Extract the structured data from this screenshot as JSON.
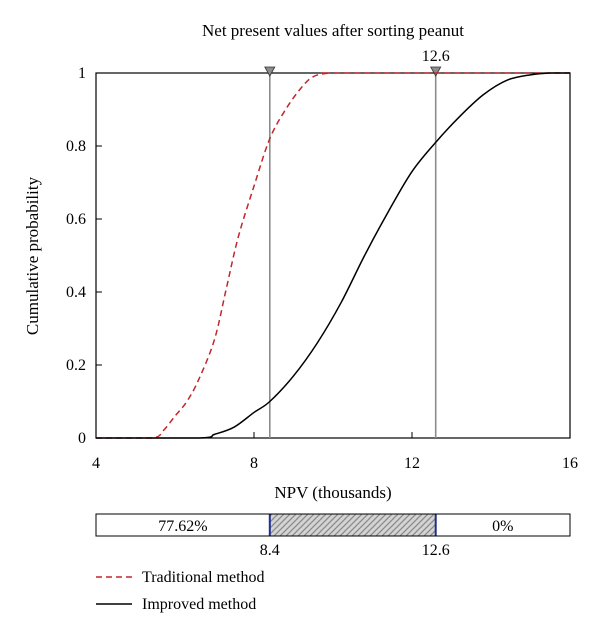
{
  "chart_data": {
    "type": "line",
    "title": "Net present values after sorting peanut",
    "xlabel": "NPV (thousands)",
    "ylabel": "Cumulative probability",
    "xlim": [
      4,
      16
    ],
    "ylim": [
      0,
      1
    ],
    "xticks": [
      4,
      8,
      12,
      16
    ],
    "xtick_labels": [
      "4",
      "8",
      "12",
      "16"
    ],
    "yticks": [
      0,
      0.2,
      0.4,
      0.6,
      0.8,
      1
    ],
    "ytick_labels": [
      "0",
      "0.2",
      "0.4",
      "0.6",
      "0.8",
      "1"
    ],
    "grid": false,
    "series": [
      {
        "name": "Traditional method",
        "color": "#c0272d",
        "dash": "dashed",
        "x": [
          5.4,
          5.7,
          6.0,
          6.3,
          6.6,
          7.0,
          7.3,
          7.6,
          8.0,
          8.4,
          8.8,
          9.2,
          9.5,
          9.9,
          10.2
        ],
        "y": [
          0.0,
          0.02,
          0.06,
          0.1,
          0.16,
          0.27,
          0.41,
          0.55,
          0.69,
          0.82,
          0.9,
          0.96,
          0.99,
          1.0,
          1.0
        ]
      },
      {
        "name": "Improved method",
        "color": "#000000",
        "dash": "solid",
        "x": [
          6.6,
          7.0,
          7.5,
          8.0,
          8.4,
          9.0,
          9.6,
          10.2,
          10.8,
          11.4,
          12.0,
          12.6,
          13.2,
          13.8,
          14.4,
          15.0,
          15.5
        ],
        "y": [
          0.0,
          0.01,
          0.03,
          0.07,
          0.1,
          0.17,
          0.26,
          0.37,
          0.5,
          0.62,
          0.73,
          0.81,
          0.88,
          0.94,
          0.98,
          0.995,
          1.0
        ]
      }
    ],
    "markers": [
      {
        "x": 8.4,
        "label": ""
      },
      {
        "x": 12.6,
        "label": "12.6"
      }
    ],
    "band": {
      "lower": 8.4,
      "upper": 12.6,
      "left_text": "77.62%",
      "right_text": "0%",
      "lower_label": "8.4",
      "upper_label": "12.6"
    },
    "legend": {
      "placement": "bottom-left",
      "items": [
        "Traditional method",
        "Improved method"
      ]
    }
  }
}
